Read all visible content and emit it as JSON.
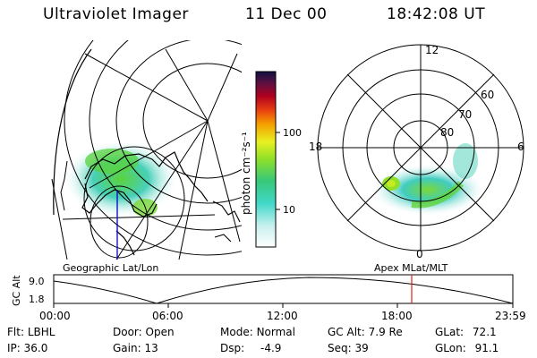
{
  "header": {
    "title": "Ultraviolet Imager",
    "date": "11 Dec 00",
    "time": "18:42:08 UT"
  },
  "colorbar": {
    "label": "photon cm⁻²s⁻¹",
    "ticks": [
      "100",
      "10"
    ]
  },
  "polar_plot": {
    "mlt_labels": [
      "12",
      "18",
      "6",
      "0"
    ],
    "lat_labels": [
      "60",
      "70",
      "80"
    ]
  },
  "map_labels": {
    "left": "Geographic Lat/Lon",
    "right": "Apex MLat/MLT"
  },
  "altitude_plot": {
    "ylabel": "GC Alt",
    "yticks": [
      "9.0",
      "1.8"
    ],
    "xticks": [
      "00:00",
      "06:00",
      "12:00",
      "18:00",
      "23:59"
    ],
    "current_marker_time": "18:42"
  },
  "status": {
    "row1": {
      "flt_label": "Flt:",
      "flt_value": "LBHL",
      "door_label": "Door:",
      "door_value": "Open",
      "mode_label": "Mode:",
      "mode_value": "Normal",
      "gcalt_label": "GC Alt:",
      "gcalt_value": "7.9 Re",
      "glat_label": "GLat:",
      "glat_value": "72.1"
    },
    "row2": {
      "ip_label": "IP:",
      "ip_value": "36.0",
      "gain_label": "Gain:",
      "gain_value": "13",
      "dsp_label": "Dsp:",
      "dsp_value": "-4.9",
      "seq_label": "Seq:",
      "seq_value": "39",
      "glon_label": "GLon:",
      "glon_value": "91.1"
    }
  },
  "colors": {
    "marker": "#e0201a",
    "earthline": "#0000cc"
  }
}
